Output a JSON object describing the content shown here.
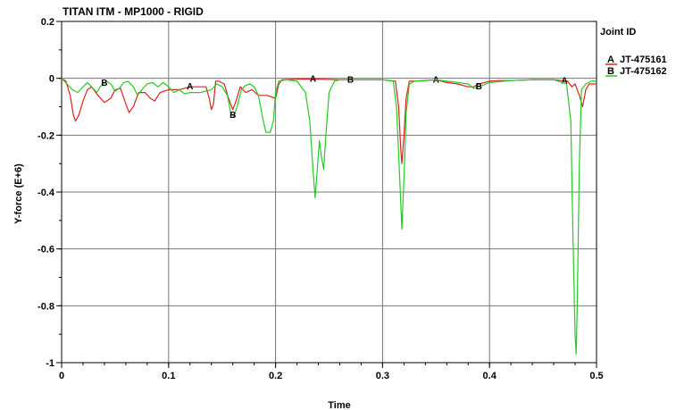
{
  "chart_data": {
    "type": "line",
    "title": "TITAN ITM - MP1000 - RIGID",
    "xlabel": "Time",
    "ylabel": "Y-force (E+6)",
    "xlim": [
      0,
      0.5
    ],
    "ylim": [
      -1,
      0.2
    ],
    "x_ticks": [
      0,
      0.1,
      0.2,
      0.3,
      0.4,
      0.5
    ],
    "x_tick_labels": [
      "0",
      "0.1",
      "0.2",
      "0.3",
      "0.4",
      "0.5"
    ],
    "y_ticks": [
      0.2,
      0,
      -0.2,
      -0.4,
      -0.6,
      -0.8,
      -1
    ],
    "y_tick_labels": [
      "0.2",
      "0",
      "-0.2",
      "-0.4",
      "-0.6",
      "-0.8",
      "-1"
    ],
    "grid": true,
    "legend_title": "Joint ID",
    "legend_position": "right",
    "series": [
      {
        "name": "JT-475161",
        "marker": "A",
        "color": "#e02020",
        "marker_x": [
          0.12,
          0.235,
          0.35,
          0.47
        ],
        "points": [
          [
            0,
            0
          ],
          [
            0.004,
            -0.01
          ],
          [
            0.008,
            -0.06
          ],
          [
            0.011,
            -0.13
          ],
          [
            0.013,
            -0.15
          ],
          [
            0.016,
            -0.13
          ],
          [
            0.02,
            -0.08
          ],
          [
            0.024,
            -0.04
          ],
          [
            0.028,
            -0.03
          ],
          [
            0.034,
            -0.06
          ],
          [
            0.04,
            -0.085
          ],
          [
            0.046,
            -0.07
          ],
          [
            0.05,
            -0.04
          ],
          [
            0.055,
            -0.035
          ],
          [
            0.06,
            -0.09
          ],
          [
            0.063,
            -0.12
          ],
          [
            0.067,
            -0.1
          ],
          [
            0.072,
            -0.05
          ],
          [
            0.078,
            -0.05
          ],
          [
            0.083,
            -0.07
          ],
          [
            0.087,
            -0.08
          ],
          [
            0.092,
            -0.05
          ],
          [
            0.1,
            -0.04
          ],
          [
            0.11,
            -0.04
          ],
          [
            0.12,
            -0.03
          ],
          [
            0.13,
            -0.03
          ],
          [
            0.135,
            -0.03
          ],
          [
            0.138,
            -0.07
          ],
          [
            0.14,
            -0.11
          ],
          [
            0.142,
            -0.09
          ],
          [
            0.144,
            -0.01
          ],
          [
            0.147,
            -0.01
          ],
          [
            0.152,
            -0.02
          ],
          [
            0.156,
            -0.07
          ],
          [
            0.16,
            -0.11
          ],
          [
            0.163,
            -0.08
          ],
          [
            0.167,
            -0.03
          ],
          [
            0.172,
            -0.05
          ],
          [
            0.178,
            -0.04
          ],
          [
            0.184,
            -0.06
          ],
          [
            0.192,
            -0.06
          ],
          [
            0.196,
            -0.065
          ],
          [
            0.2,
            -0.07
          ],
          [
            0.203,
            -0.02
          ],
          [
            0.206,
            -0.005
          ],
          [
            0.22,
            -0.003
          ],
          [
            0.24,
            -0.003
          ],
          [
            0.26,
            -0.005
          ],
          [
            0.28,
            -0.005
          ],
          [
            0.3,
            -0.005
          ],
          [
            0.312,
            -0.01
          ],
          [
            0.315,
            -0.1
          ],
          [
            0.317,
            -0.25
          ],
          [
            0.318,
            -0.3
          ],
          [
            0.32,
            -0.2
          ],
          [
            0.322,
            -0.07
          ],
          [
            0.325,
            -0.01
          ],
          [
            0.33,
            -0.01
          ],
          [
            0.35,
            -0.005
          ],
          [
            0.36,
            -0.015
          ],
          [
            0.37,
            -0.02
          ],
          [
            0.38,
            -0.03
          ],
          [
            0.385,
            -0.03
          ],
          [
            0.39,
            -0.02
          ],
          [
            0.4,
            -0.01
          ],
          [
            0.41,
            -0.008
          ],
          [
            0.42,
            -0.008
          ],
          [
            0.44,
            -0.005
          ],
          [
            0.46,
            -0.005
          ],
          [
            0.473,
            -0.01
          ],
          [
            0.477,
            -0.03
          ],
          [
            0.48,
            -0.02
          ],
          [
            0.484,
            -0.06
          ],
          [
            0.487,
            -0.1
          ],
          [
            0.49,
            -0.04
          ],
          [
            0.493,
            -0.02
          ],
          [
            0.497,
            -0.02
          ],
          [
            0.5,
            -0.02
          ]
        ]
      },
      {
        "name": "JT-475162",
        "marker": "B",
        "color": "#22cc22",
        "marker_x": [
          0.04,
          0.16,
          0.27,
          0.39
        ],
        "points": [
          [
            0,
            0
          ],
          [
            0.005,
            -0.02
          ],
          [
            0.01,
            -0.04
          ],
          [
            0.015,
            -0.05
          ],
          [
            0.02,
            -0.03
          ],
          [
            0.024,
            -0.015
          ],
          [
            0.028,
            -0.03
          ],
          [
            0.033,
            -0.05
          ],
          [
            0.036,
            -0.03
          ],
          [
            0.042,
            -0.01
          ],
          [
            0.046,
            -0.02
          ],
          [
            0.05,
            -0.045
          ],
          [
            0.054,
            -0.035
          ],
          [
            0.058,
            -0.015
          ],
          [
            0.062,
            -0.01
          ],
          [
            0.067,
            -0.03
          ],
          [
            0.071,
            -0.06
          ],
          [
            0.075,
            -0.04
          ],
          [
            0.08,
            -0.02
          ],
          [
            0.085,
            -0.015
          ],
          [
            0.09,
            -0.03
          ],
          [
            0.095,
            -0.015
          ],
          [
            0.1,
            -0.03
          ],
          [
            0.105,
            -0.05
          ],
          [
            0.11,
            -0.04
          ],
          [
            0.115,
            -0.055
          ],
          [
            0.12,
            -0.05
          ],
          [
            0.13,
            -0.05
          ],
          [
            0.14,
            -0.04
          ],
          [
            0.145,
            -0.02
          ],
          [
            0.15,
            -0.03
          ],
          [
            0.155,
            -0.06
          ],
          [
            0.158,
            -0.12
          ],
          [
            0.161,
            -0.135
          ],
          [
            0.164,
            -0.1
          ],
          [
            0.168,
            -0.04
          ],
          [
            0.172,
            -0.025
          ],
          [
            0.176,
            -0.02
          ],
          [
            0.18,
            -0.03
          ],
          [
            0.184,
            -0.06
          ],
          [
            0.188,
            -0.14
          ],
          [
            0.191,
            -0.19
          ],
          [
            0.195,
            -0.19
          ],
          [
            0.198,
            -0.15
          ],
          [
            0.2,
            -0.05
          ],
          [
            0.203,
            -0.01
          ],
          [
            0.21,
            -0.005
          ],
          [
            0.22,
            -0.01
          ],
          [
            0.228,
            -0.05
          ],
          [
            0.232,
            -0.15
          ],
          [
            0.235,
            -0.32
          ],
          [
            0.237,
            -0.42
          ],
          [
            0.239,
            -0.32
          ],
          [
            0.241,
            -0.22
          ],
          [
            0.243,
            -0.28
          ],
          [
            0.245,
            -0.32
          ],
          [
            0.247,
            -0.2
          ],
          [
            0.25,
            -0.05
          ],
          [
            0.255,
            -0.01
          ],
          [
            0.26,
            -0.005
          ],
          [
            0.28,
            -0.005
          ],
          [
            0.3,
            -0.005
          ],
          [
            0.31,
            -0.01
          ],
          [
            0.313,
            -0.1
          ],
          [
            0.316,
            -0.35
          ],
          [
            0.318,
            -0.53
          ],
          [
            0.32,
            -0.35
          ],
          [
            0.322,
            -0.12
          ],
          [
            0.325,
            -0.02
          ],
          [
            0.33,
            -0.01
          ],
          [
            0.35,
            -0.005
          ],
          [
            0.36,
            -0.01
          ],
          [
            0.37,
            -0.015
          ],
          [
            0.38,
            -0.02
          ],
          [
            0.385,
            -0.035
          ],
          [
            0.39,
            -0.03
          ],
          [
            0.4,
            -0.015
          ],
          [
            0.42,
            -0.008
          ],
          [
            0.44,
            -0.005
          ],
          [
            0.46,
            -0.005
          ],
          [
            0.472,
            -0.02
          ],
          [
            0.476,
            -0.15
          ],
          [
            0.478,
            -0.55
          ],
          [
            0.48,
            -0.9
          ],
          [
            0.481,
            -0.97
          ],
          [
            0.482,
            -0.8
          ],
          [
            0.484,
            -0.3
          ],
          [
            0.486,
            -0.04
          ],
          [
            0.49,
            -0.02
          ],
          [
            0.495,
            -0.01
          ],
          [
            0.5,
            -0.01
          ]
        ]
      }
    ]
  }
}
